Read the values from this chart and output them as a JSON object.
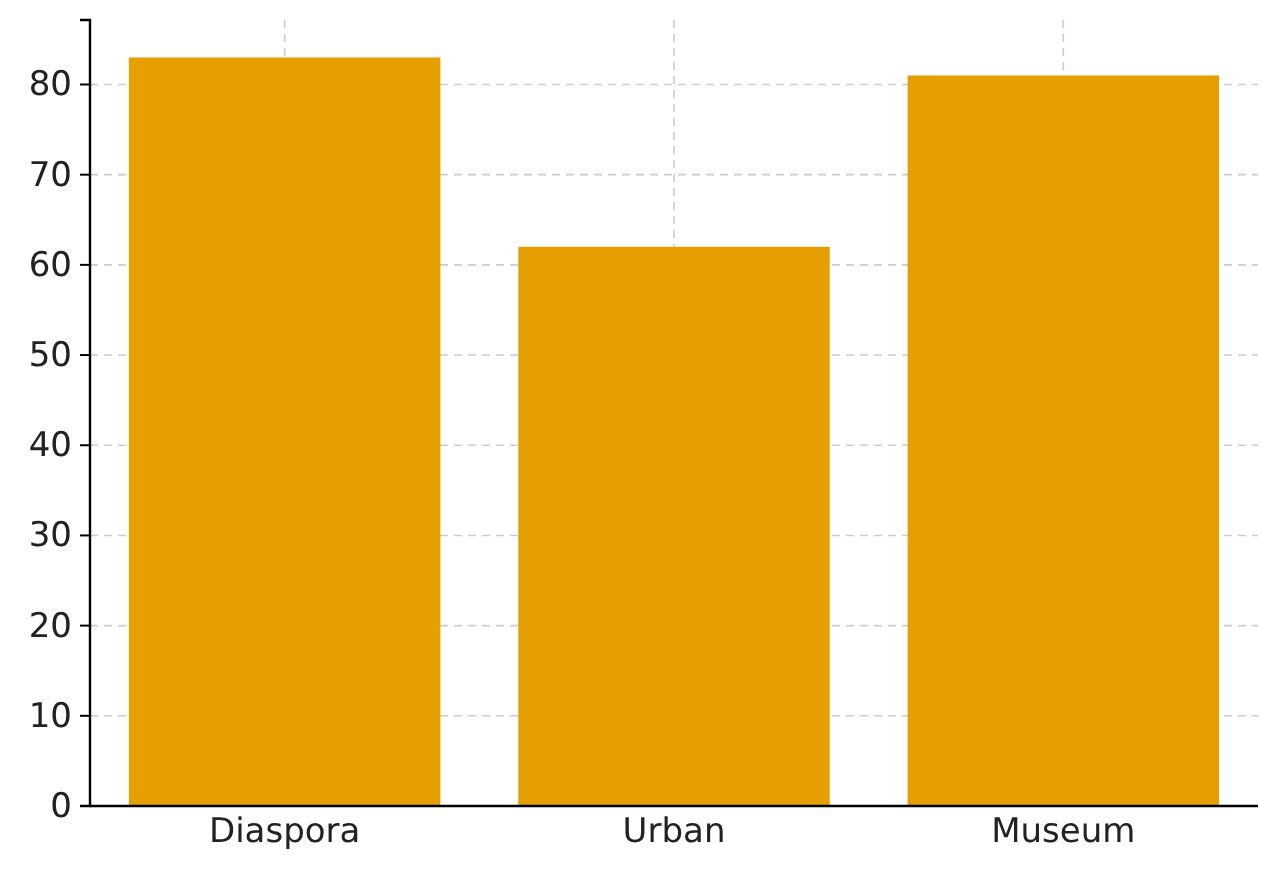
{
  "chart_data": {
    "type": "bar",
    "categories": [
      "Diaspora",
      "Urban",
      "Museum"
    ],
    "values": [
      83,
      62,
      81
    ],
    "color": "#e69f00",
    "ylim": [
      0,
      87.15
    ],
    "yticks": [
      0,
      10,
      20,
      30,
      40,
      50,
      60,
      70,
      80
    ],
    "grid": true
  }
}
